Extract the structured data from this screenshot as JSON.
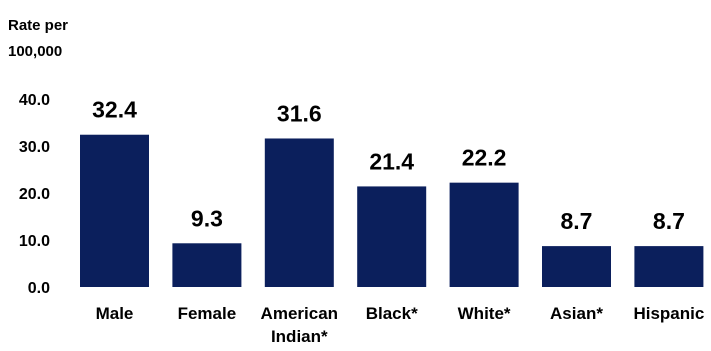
{
  "chart_data": {
    "type": "bar",
    "title": "",
    "ylabel_lines": [
      "Rate per",
      "100,000"
    ],
    "xlabel": "",
    "categories": [
      [
        "Male"
      ],
      [
        "Female"
      ],
      [
        "American",
        "Indian*"
      ],
      [
        "Black*"
      ],
      [
        "White*"
      ],
      [
        "Asian*"
      ],
      [
        "Hispanic"
      ]
    ],
    "values": [
      32.4,
      9.3,
      31.6,
      21.4,
      22.2,
      8.7,
      8.7
    ],
    "data_labels": [
      "32.4",
      "9.3",
      "31.6",
      "21.4",
      "22.2",
      "8.7",
      "8.7"
    ],
    "y_ticks": [
      "0.0",
      "10.0",
      "20.0",
      "30.0",
      "40.0"
    ],
    "y_tick_values": [
      0,
      10,
      20,
      30,
      40
    ],
    "ylim": [
      0,
      40
    ],
    "grid": false,
    "legend": "none",
    "colors": {
      "bar": "#0b1f5c",
      "text": "#000000"
    }
  }
}
